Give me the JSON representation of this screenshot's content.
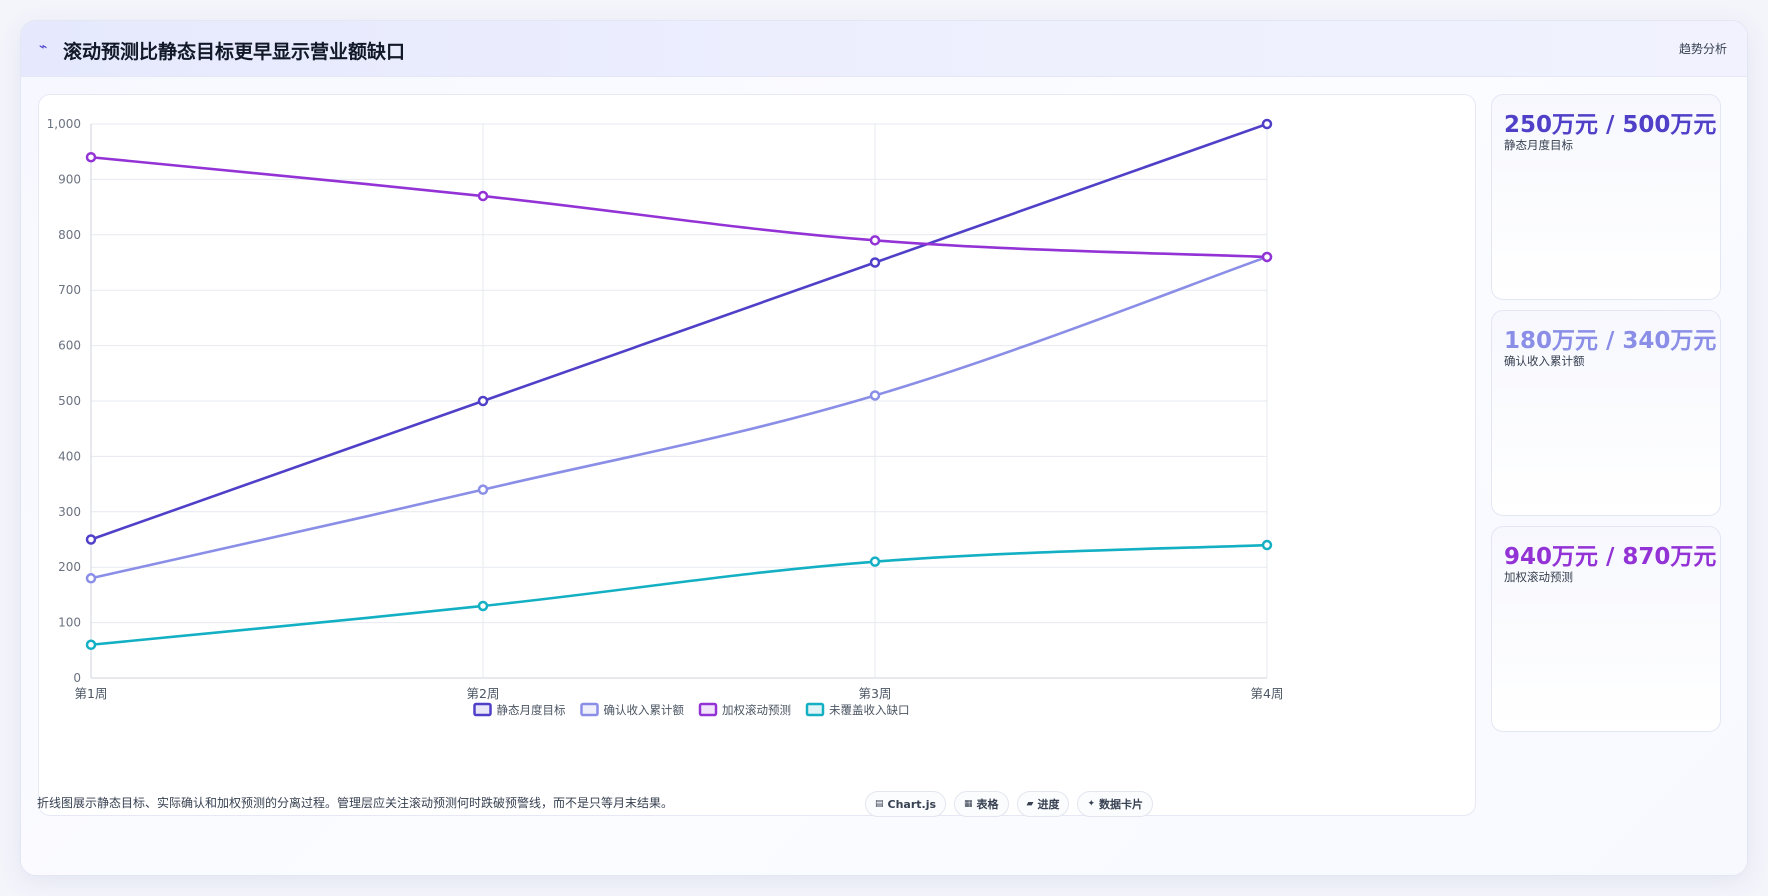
{
  "header": {
    "icon": "lightning-icon",
    "title": "滚动预测比静态目标更早显示营业额缺口",
    "right_label": "趋势分析"
  },
  "chart_data": {
    "type": "line",
    "title": "",
    "xlabel": "",
    "ylabel": "",
    "categories": [
      "第1周",
      "第2周",
      "第3周",
      "第4周"
    ],
    "ylim": [
      0,
      1000
    ],
    "yticks": [
      0,
      100,
      200,
      300,
      400,
      500,
      600,
      700,
      800,
      900,
      1000
    ],
    "ytick_labels": [
      "0",
      "100",
      "200",
      "300",
      "400",
      "500",
      "600",
      "700",
      "800",
      "900",
      "1,000"
    ],
    "grid": true,
    "legend_position": "bottom",
    "series": [
      {
        "name": "静态月度目标",
        "values": [
          250,
          500,
          750,
          1000
        ],
        "color": "#5040c8"
      },
      {
        "name": "确认收入累计额",
        "values": [
          180,
          340,
          510,
          760
        ],
        "color": "#8a8ee6"
      },
      {
        "name": "加权滚动预测",
        "values": [
          940,
          870,
          790,
          760
        ],
        "color": "#9333d6"
      },
      {
        "name": "未覆盖收入缺口",
        "values": [
          60,
          130,
          210,
          240
        ],
        "color": "#13b0c4"
      }
    ]
  },
  "stats": [
    {
      "value": "250万元 / 500万元",
      "label": "静态月度目标",
      "color": "#5040c8"
    },
    {
      "value": "180万元 / 340万元",
      "label": "确认收入累计额",
      "color": "#8a8ee6"
    },
    {
      "value": "940万元 / 870万元",
      "label": "加权滚动预测",
      "color": "#9333d6"
    }
  ],
  "footer": {
    "note": "折线图展示静态目标、实际确认和加权预测的分离过程。管理层应关注滚动预测何时跌破预警线，而不是只等月末结果。",
    "chips": [
      {
        "icon": "chart-icon",
        "label": "Chart.js"
      },
      {
        "icon": "table-icon",
        "label": "表格"
      },
      {
        "icon": "progress-icon",
        "label": "进度"
      },
      {
        "icon": "sparkle-icon",
        "label": "数据卡片"
      }
    ]
  }
}
